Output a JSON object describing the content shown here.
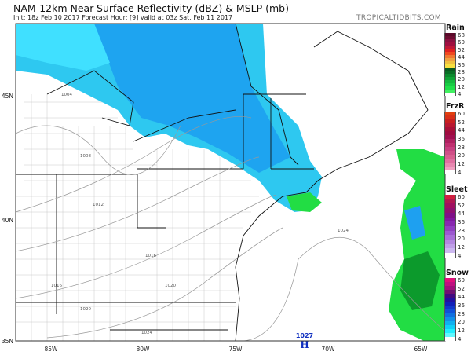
{
  "header": {
    "title": "NAM-12km Near-Surface Reflectivity (dBZ) & MSLP (mb)",
    "subtitle": "Init: 18z Feb 10 2017   Forecast Hour: [9]   valid at 03z Sat, Feb 11 2017",
    "brand": "TROPICALTIDBITS.COM"
  },
  "map": {
    "lon_labels": [
      "85W",
      "80W",
      "75W",
      "70W",
      "65W"
    ],
    "lat_labels": [
      "45N",
      "40N",
      "35N"
    ],
    "isobar_labels": [
      "1004",
      "1008",
      "1012",
      "1016",
      "1016",
      "1020",
      "1020",
      "1024",
      "1024"
    ],
    "high_pressure": {
      "symbol": "H",
      "value": "1027"
    },
    "colors": {
      "snow_light": "#00e5ff",
      "snow_mid": "#1ea0f0",
      "rain": "#22dd44",
      "rain_dark": "#0c9a2c",
      "isobar": "#999999",
      "border": "#111111",
      "county": "#bbbbbb"
    }
  },
  "legend": [
    {
      "title": "Rain",
      "labels": [
        "68",
        "60",
        "52",
        "44",
        "36",
        "28",
        "20",
        "12",
        "4"
      ],
      "colors": [
        "#5a0a2a",
        "#6e0e32",
        "#8a1040",
        "#a01040",
        "#c01838",
        "#e02020",
        "#f04820",
        "#f07830",
        "#f0a040",
        "#f0c040",
        "#f8e040",
        "#085a20",
        "#0a6e26",
        "#0c8a2e",
        "#10a236",
        "#14b83e",
        "#18cc44",
        "#20e04a",
        "#40f060",
        "#ffffff"
      ]
    },
    {
      "title": "FrzR",
      "labels": [
        "60",
        "52",
        "44",
        "36",
        "28",
        "20",
        "12",
        "4"
      ],
      "colors": [
        "#e04010",
        "#d83018",
        "#c82020",
        "#b81830",
        "#a81038",
        "#a00c40",
        "#a01050",
        "#b02060",
        "#c03070",
        "#c84080",
        "#d05088",
        "#d86090",
        "#e070a0",
        "#e888b0",
        "#f0a0c0",
        "#ffffff"
      ]
    },
    {
      "title": "Sleet",
      "labels": [
        "60",
        "52",
        "44",
        "36",
        "28",
        "20",
        "12",
        "4"
      ],
      "colors": [
        "#d02040",
        "#b01850",
        "#a01060",
        "#901070",
        "#801088",
        "#8018a0",
        "#8828b0",
        "#9040c0",
        "#9c58d0",
        "#a870d8",
        "#b488e0",
        "#c0a0e8",
        "#ccb8f0",
        "#ffffff"
      ]
    },
    {
      "title": "Snow",
      "labels": [
        "60",
        "52",
        "44",
        "36",
        "28",
        "20",
        "12",
        "4"
      ],
      "colors": [
        "#e0107a",
        "#c01080",
        "#a0107a",
        "#701070",
        "#400a80",
        "#2010a0",
        "#1020b8",
        "#1038c8",
        "#1050d8",
        "#1070e0",
        "#1090e8",
        "#10b0f0",
        "#10d0f8",
        "#20eeff",
        "#60f8ff",
        "#ffffff"
      ]
    }
  ]
}
